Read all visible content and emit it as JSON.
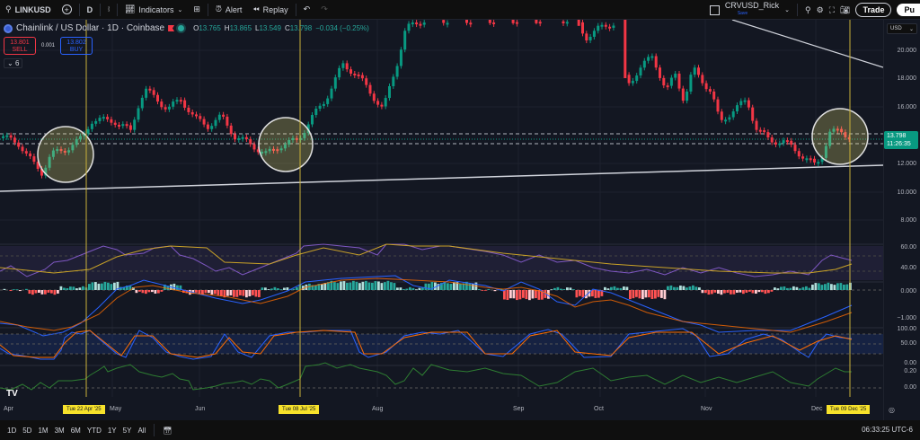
{
  "topbar": {
    "symbol": "LINKUSD",
    "interval": "D",
    "indicators_label": "Indicators",
    "alert_label": "Alert",
    "replay_label": "Replay",
    "layout_name": "CRVUSD_Rick",
    "layout_status": "Save",
    "trade_label": "Trade",
    "publish_label": "Pu"
  },
  "legend": {
    "title": "Chainlink / US Dollar · 1D · Coinbase",
    "open_k": "O",
    "open": "13.765",
    "high_k": "H",
    "high": "13.865",
    "low_k": "L",
    "low": "13.549",
    "close_k": "C",
    "close": "13.798",
    "change": "−0.034 (−0.25%)",
    "sell_price": "13.801",
    "sell_label": "SELL",
    "buy_price": "13.802",
    "buy_label": "BUY",
    "spread": "0.001",
    "collapsed_count": "6"
  },
  "price_axis": {
    "currency": "USD",
    "ticks": [
      "20.000",
      "18.000",
      "16.000",
      "12.000",
      "10.000",
      "8.000"
    ],
    "last_price": "13.798",
    "countdown": "11:26:35",
    "rsi_ticks": [
      "60.00",
      "40.00"
    ],
    "macd_ticks": [
      "0.000",
      "−1.000"
    ],
    "stoch_ticks": [
      "100.00",
      "50.00",
      "0.00"
    ],
    "osc_ticks": [
      "0.20",
      "0.00"
    ]
  },
  "time_axis": {
    "labels": [
      "Apr",
      "May",
      "Jun",
      "Aug",
      "Sep",
      "Oct",
      "Nov",
      "Dec"
    ],
    "markers": [
      "Tue 22 Apr '25",
      "Tue 08 Jul '25",
      "Tue 09 Dec '25"
    ]
  },
  "bottombar": {
    "ranges": [
      "1D",
      "5D",
      "1M",
      "3M",
      "6M",
      "YTD",
      "1Y",
      "5Y",
      "All"
    ],
    "clock": "06:33:25 UTC-6"
  },
  "colors": {
    "up": "#089981",
    "down": "#f23645",
    "marker": "#f7e22b",
    "background": "#131722"
  }
}
